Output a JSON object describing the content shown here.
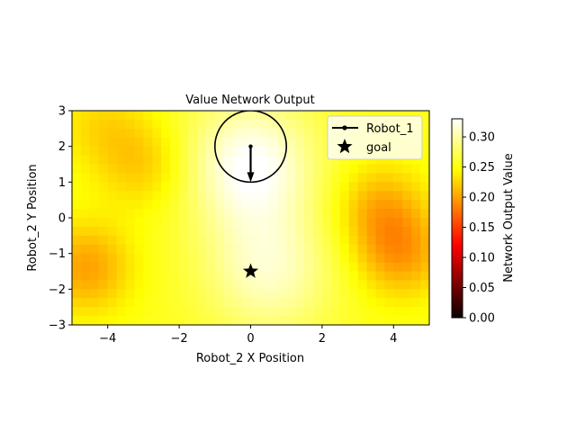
{
  "chart_data": {
    "type": "heatmap",
    "title": "Value Network Output",
    "xlabel": "Robot_2 X Position",
    "ylabel": "Robot_2 Y Position",
    "xlim": [
      -5,
      5
    ],
    "ylim": [
      -3,
      3
    ],
    "x_ticks": [
      -4,
      -2,
      0,
      2,
      4
    ],
    "x_tick_labels": [
      "−4",
      "−2",
      "0",
      "2",
      "4"
    ],
    "y_ticks": [
      -3,
      -2,
      -1,
      0,
      1,
      2,
      3
    ],
    "y_tick_labels": [
      "−3",
      "−2",
      "−1",
      "0",
      "1",
      "2",
      "3"
    ],
    "grid": false,
    "colormap": "hot",
    "colorbar": {
      "label": "Network Output Value",
      "range": [
        0.0,
        0.33
      ],
      "ticks": [
        0.0,
        0.05,
        0.1,
        0.15,
        0.2,
        0.25,
        0.3
      ],
      "tick_labels": [
        "0.00",
        "0.05",
        "0.10",
        "0.15",
        "0.20",
        "0.25",
        "0.30"
      ]
    },
    "heatmap_resolution": [
      40,
      24
    ],
    "heatmap_features": [
      {
        "description": "high value ridge around robot",
        "center": [
          0,
          1.5
        ],
        "peak_value": 0.33
      },
      {
        "description": "high value near goal",
        "center": [
          0.5,
          -1.5
        ],
        "peak_value": 0.31
      },
      {
        "description": "low value region",
        "center": [
          -4.6,
          -1.4
        ],
        "peak_value": 0.2
      },
      {
        "description": "low value region",
        "center": [
          4.2,
          -1.0
        ],
        "peak_value": 0.2
      },
      {
        "description": "low value region",
        "center": [
          3.6,
          0.3
        ],
        "peak_value": 0.21
      },
      {
        "description": "low value region",
        "center": [
          -3.0,
          1.5
        ],
        "peak_value": 0.22
      },
      {
        "description": "low value region",
        "center": [
          -4.2,
          2.6
        ],
        "peak_value": 0.23
      },
      {
        "description": "baseline",
        "peak_value": 0.255
      }
    ],
    "robot_1": {
      "position": [
        0,
        2
      ],
      "radius": 1.0,
      "heading_end": [
        0,
        1.0
      ]
    },
    "goal": {
      "position": [
        0,
        -1.5
      ]
    },
    "legend": {
      "placement": "upper right",
      "entries": [
        {
          "label": "Robot_1",
          "marker": "line-dot",
          "color": "#000000"
        },
        {
          "label": "goal",
          "marker": "star",
          "color": "#000000"
        }
      ]
    }
  }
}
